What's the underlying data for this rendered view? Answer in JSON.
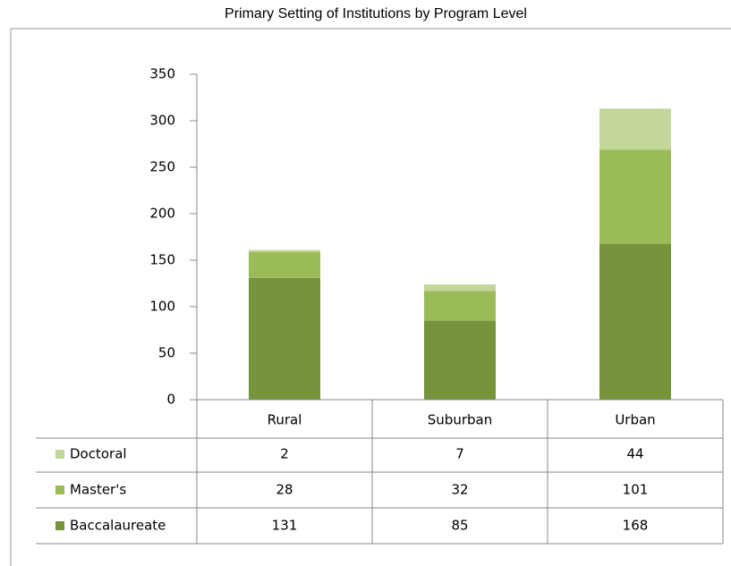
{
  "chart_data": {
    "type": "bar",
    "stacked": true,
    "title": "Primary Setting of Institutions by Program Level",
    "categories": [
      "Rural",
      "Suburban",
      "Urban"
    ],
    "series": [
      {
        "name": "Doctoral",
        "color": "#c3d69b",
        "values": [
          2,
          7,
          44
        ]
      },
      {
        "name": "Master's",
        "color": "#9bbb59",
        "values": [
          28,
          32,
          101
        ]
      },
      {
        "name": "Baccalaureate",
        "color": "#77933c",
        "values": [
          131,
          85,
          168
        ]
      }
    ],
    "ylim": [
      0,
      350
    ],
    "yticks": [
      0,
      50,
      100,
      150,
      200,
      250,
      300,
      350
    ]
  }
}
